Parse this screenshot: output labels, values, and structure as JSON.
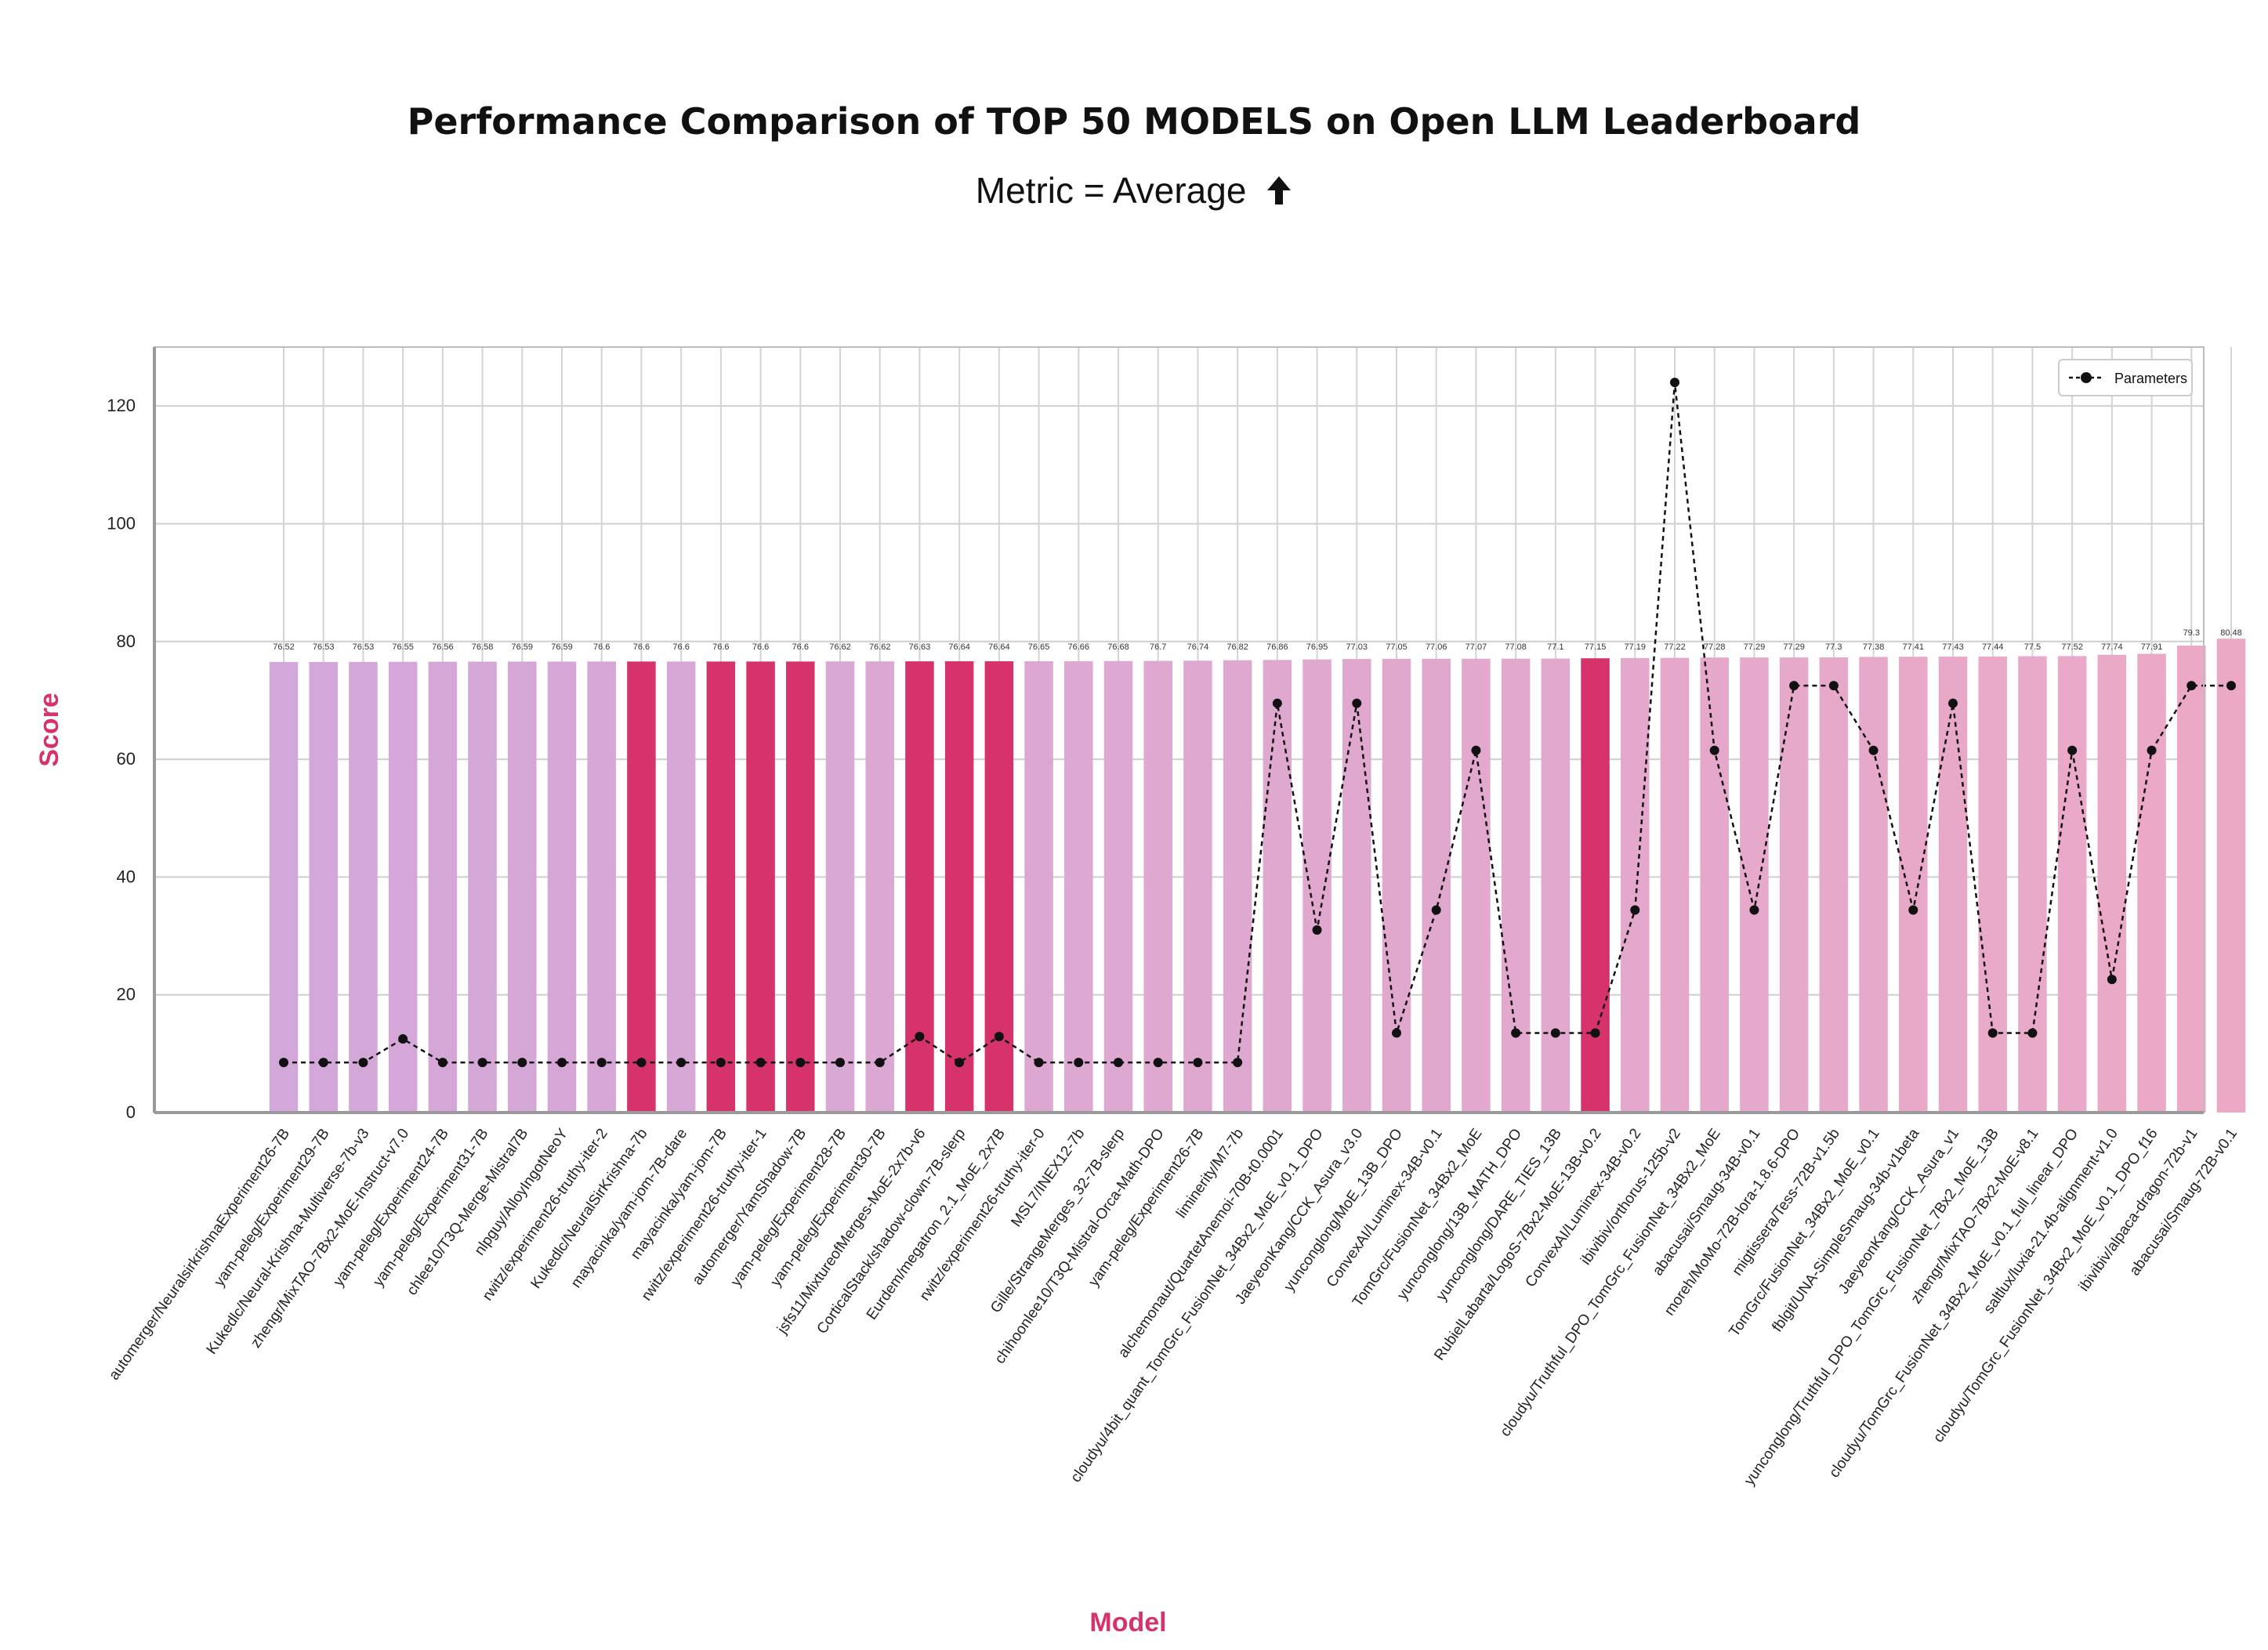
{
  "title": "Performance Comparison of TOP 50 MODELS on Open LLM Leaderboard",
  "subtitle": "Metric = Average",
  "subtitle_icon": "up-arrow-icon",
  "chart_data": {
    "type": "bar",
    "title": "Performance Comparison of TOP 50 MODELS on Open LLM Leaderboard",
    "xlabel": "Model",
    "ylabel": "Score",
    "ylim": [
      0,
      130
    ],
    "yticks": [
      0,
      20,
      40,
      60,
      80,
      100,
      120
    ],
    "grid": true,
    "legend_placement": "top-right",
    "label_color": "#d6336c",
    "categories": [
      "automerger/NeuralsirkrishnaExperiment26-7B",
      "yam-peleg/Experiment29-7B",
      "Kukedlc/Neural-Krishna-Multiverse-7b-v3",
      "zhengr/MixTAO-7Bx2-MoE-Instruct-v7.0",
      "yam-peleg/Experiment24-7B",
      "yam-peleg/Experiment31-7B",
      "chlee10/T3Q-Merge-Mistral7B",
      "nlpguy/AlloyIngotNeoY",
      "rwitz/experiment26-truthy-iter-2",
      "Kukedlc/NeuralSirKrishna-7b",
      "mayacinka/yam-jom-7B-dare",
      "mayacinka/yam-jom-7B",
      "rwitz/experiment26-truthy-iter-1",
      "automerger/YamShadow-7B",
      "yam-peleg/Experiment28-7B",
      "yam-peleg/Experiment30-7B",
      "jsfs11/MixtureofMerges-MoE-2x7b-v6",
      "CorticalStack/shadow-clown-7B-slerp",
      "Eurdem/megatron_2.1_MoE_2x7B",
      "rwitz/experiment26-truthy-iter-0",
      "MSL7/INEX12-7b",
      "Gille/StrangeMerges_32-7B-slerp",
      "chihoonlee10/T3Q-Mistral-Orca-Math-DPO",
      "yam-peleg/Experiment26-7B",
      "liminerity/M7-7b",
      "alchemonaut/QuartetAnemoi-70B-t0.0001",
      "cloudyu/4bit_quant_TomGrc_FusionNet_34Bx2_MoE_v0.1_DPO",
      "JaeyeonKang/CCK_Asura_v3.0",
      "yunconglong/MoE_13B_DPO",
      "ConvexAI/Luminex-34B-v0.1",
      "TomGrc/FusionNet_34Bx2_MoE",
      "yunconglong/13B_MATH_DPO",
      "yunconglong/DARE_TIES_13B",
      "RubielLabarta/LogoS-7Bx2-MoE-13B-v0.2",
      "ConvexAI/Luminex-34B-v0.2",
      "ibivibiv/orthorus-125b-v2",
      "cloudyu/Truthful_DPO_TomGrc_FusionNet_34Bx2_MoE",
      "abacusai/Smaug-34B-v0.1",
      "moreh/MoMo-72B-lora-1.8.6-DPO",
      "migtissera/Tess-72B-v1.5b",
      "TomGrc/FusionNet_34Bx2_MoE_v0.1",
      "fblgit/UNA-SimpleSmaug-34b-v1beta",
      "JaeyeonKang/CCK_Asura_v1",
      "yunconglong/Truthful_DPO_TomGrc_FusionNet_7Bx2_MoE_13B",
      "zhengr/MixTAO-7Bx2-MoE-v8.1",
      "cloudyu/TomGrc_FusionNet_34Bx2_MoE_v0.1_full_linear_DPO",
      "saltlux/luxia-21.4b-alignment-v1.0",
      "cloudyu/TomGrc_FusionNet_34Bx2_MoE_v0.1_DPO_f16",
      "ibivibiv/alpaca-dragon-72b-v1",
      "abacusai/Smaug-72B-v0.1"
    ],
    "bar_labels": [
      "76.52",
      "76.53",
      "76.53",
      "76.55",
      "76.56",
      "76.58",
      "76.59",
      "76.59",
      "76.6",
      "76.6",
      "76.6",
      "76.6",
      "76.6",
      "76.6",
      "76.62",
      "76.62",
      "76.63",
      "76.64",
      "76.64",
      "76.65",
      "76.66",
      "76.68",
      "76.7",
      "76.74",
      "76.82",
      "76.86",
      "76.95",
      "77.03",
      "77.05",
      "77.06",
      "77.07",
      "77.08",
      "77.1",
      "77.15",
      "77.19",
      "77.22",
      "77.28",
      "77.29",
      "77.29",
      "77.3",
      "77.38",
      "77.41",
      "77.43",
      "77.44",
      "77.5",
      "77.52",
      "77.74",
      "77.91",
      "79.3",
      "80.48"
    ],
    "series": [
      {
        "type": "bar",
        "values": [
          76.52,
          76.53,
          76.53,
          76.55,
          76.56,
          76.58,
          76.59,
          76.59,
          76.6,
          76.6,
          76.6,
          76.6,
          76.6,
          76.6,
          76.62,
          76.62,
          76.63,
          76.64,
          76.64,
          76.65,
          76.66,
          76.68,
          76.7,
          76.74,
          76.82,
          76.86,
          76.95,
          77.03,
          77.05,
          77.06,
          77.07,
          77.08,
          77.1,
          77.15,
          77.19,
          77.22,
          77.28,
          77.29,
          77.29,
          77.3,
          77.38,
          77.41,
          77.43,
          77.44,
          77.5,
          77.52,
          77.74,
          77.91,
          79.3,
          80.48
        ],
        "highlight_indices": [
          9,
          11,
          12,
          13,
          16,
          17,
          18,
          33
        ],
        "highlight_color": "#d6336c"
      },
      {
        "type": "line",
        "name": "Parameters",
        "style": "dashed, black, dot markers",
        "values": [
          8.5,
          8.5,
          8.5,
          12.5,
          8.5,
          8.5,
          8.5,
          8.5,
          8.5,
          8.5,
          8.5,
          8.5,
          8.5,
          8.5,
          8.5,
          8.5,
          12.9,
          8.5,
          12.9,
          8.5,
          8.5,
          8.5,
          8.5,
          8.5,
          8.5,
          69.5,
          31,
          69.5,
          13.5,
          34.4,
          61.5,
          13.5,
          13.5,
          13.5,
          34.4,
          124,
          61.5,
          34.4,
          72.5,
          72.5,
          61.5,
          34.4,
          69.5,
          13.5,
          13.5,
          61.5,
          22.6,
          61.5,
          72.5,
          72.5
        ]
      }
    ]
  }
}
